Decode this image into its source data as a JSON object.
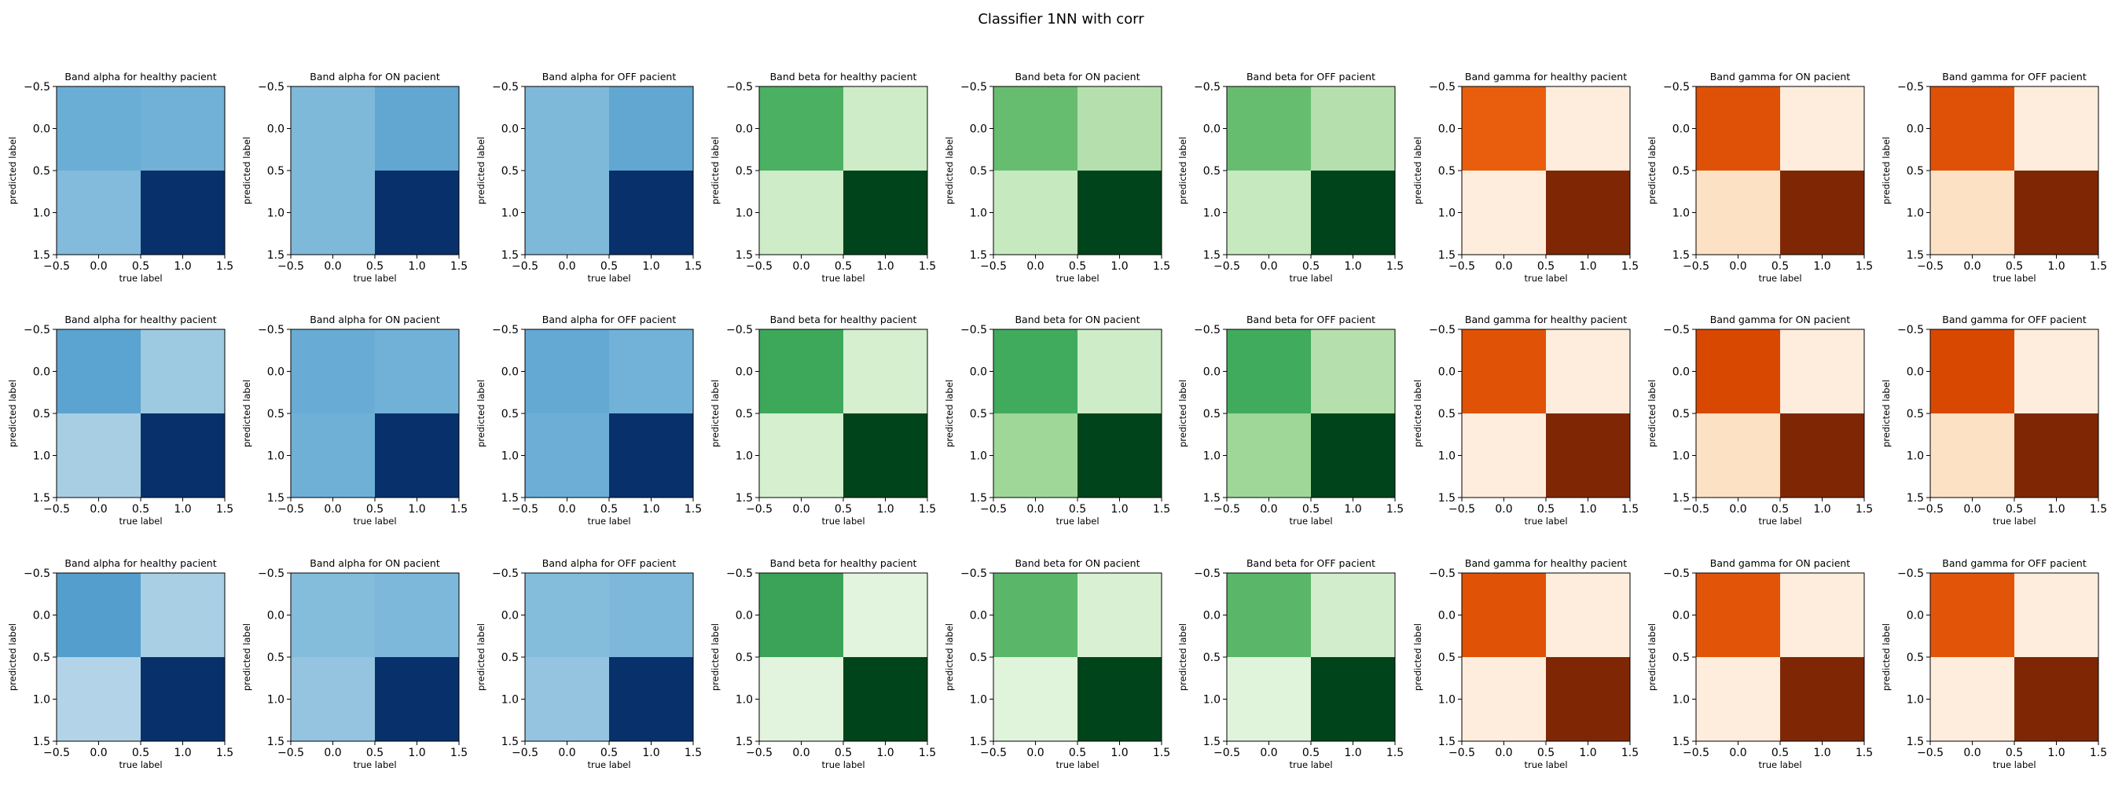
{
  "figure": {
    "title": "Classifier 1NN with corr"
  },
  "axes_common": {
    "xlabel": "true label",
    "ylabel": "predicted label",
    "xlim": [
      -0.5,
      1.5
    ],
    "ylim": [
      1.5,
      -0.5
    ],
    "xticks": [
      "−0.5",
      "0.0",
      "0.5",
      "1.0",
      "1.5"
    ],
    "yticks": [
      "−0.5",
      "0.0",
      "0.5",
      "1.0",
      "1.5"
    ]
  },
  "chart_data": [
    {
      "type": "heatmap",
      "title": "Band alpha for healthy pacient",
      "colormap": "Blues",
      "cells": [
        [
          "#6aaed6",
          "#71b1d7"
        ],
        [
          "#82bbdb",
          "#08306b"
        ]
      ]
    },
    {
      "type": "heatmap",
      "title": "Band alpha for ON pacient",
      "colormap": "Blues",
      "cells": [
        [
          "#7fb9da",
          "#61a7d2"
        ],
        [
          "#7fb9da",
          "#08306b"
        ]
      ]
    },
    {
      "type": "heatmap",
      "title": "Band alpha for OFF pacient",
      "colormap": "Blues",
      "cells": [
        [
          "#7fb9da",
          "#61a7d2"
        ],
        [
          "#7fb9da",
          "#08306b"
        ]
      ]
    },
    {
      "type": "heatmap",
      "title": "Band beta for healthy pacient",
      "colormap": "Greens",
      "cells": [
        [
          "#4bb062",
          "#cdecc7"
        ],
        [
          "#cdecc7",
          "#00441b"
        ]
      ]
    },
    {
      "type": "heatmap",
      "title": "Band beta for ON pacient",
      "colormap": "Greens",
      "cells": [
        [
          "#67bd6f",
          "#b5e0ad"
        ],
        [
          "#c7e9c0",
          "#00441b"
        ]
      ]
    },
    {
      "type": "heatmap",
      "title": "Band beta for OFF pacient",
      "colormap": "Greens",
      "cells": [
        [
          "#67bd6f",
          "#b5e0ad"
        ],
        [
          "#c7e9c0",
          "#00441b"
        ]
      ]
    },
    {
      "type": "heatmap",
      "title": "Band gamma for healthy pacient",
      "colormap": "Oranges",
      "cells": [
        [
          "#e95e0d",
          "#feeddc"
        ],
        [
          "#feeddc",
          "#7f2704"
        ]
      ]
    },
    {
      "type": "heatmap",
      "title": "Band gamma for ON pacient",
      "colormap": "Oranges",
      "cells": [
        [
          "#df5106",
          "#feeddc"
        ],
        [
          "#fde1c4",
          "#7f2704"
        ]
      ]
    },
    {
      "type": "heatmap",
      "title": "Band gamma for OFF pacient",
      "colormap": "Oranges",
      "cells": [
        [
          "#df5106",
          "#feeddc"
        ],
        [
          "#fde1c4",
          "#7f2704"
        ]
      ]
    },
    {
      "type": "heatmap",
      "title": "Band alpha for healthy pacient",
      "colormap": "Blues",
      "cells": [
        [
          "#5ba3d0",
          "#9dcae1"
        ],
        [
          "#a8cee4",
          "#08306b"
        ]
      ]
    },
    {
      "type": "heatmap",
      "title": "Band alpha for ON pacient",
      "colormap": "Blues",
      "cells": [
        [
          "#68acd5",
          "#71b1d7"
        ],
        [
          "#6fb0d7",
          "#08306b"
        ]
      ]
    },
    {
      "type": "heatmap",
      "title": "Band alpha for OFF pacient",
      "colormap": "Blues",
      "cells": [
        [
          "#64a9d3",
          "#72b2d8"
        ],
        [
          "#6caed6",
          "#08306b"
        ]
      ]
    },
    {
      "type": "heatmap",
      "title": "Band beta for healthy pacient",
      "colormap": "Greens",
      "cells": [
        [
          "#3ea85a",
          "#d5efcf"
        ],
        [
          "#d5efcf",
          "#00441b"
        ]
      ]
    },
    {
      "type": "heatmap",
      "title": "Band beta for ON pacient",
      "colormap": "Greens",
      "cells": [
        [
          "#41ab5d",
          "#cdecc7"
        ],
        [
          "#9ed798",
          "#00441b"
        ]
      ]
    },
    {
      "type": "heatmap",
      "title": "Band beta for OFF pacient",
      "colormap": "Greens",
      "cells": [
        [
          "#41ab5d",
          "#b5e0ad"
        ],
        [
          "#9ed798",
          "#00441b"
        ]
      ]
    },
    {
      "type": "heatmap",
      "title": "Band gamma for healthy pacient",
      "colormap": "Oranges",
      "cells": [
        [
          "#e05206",
          "#feeddc"
        ],
        [
          "#feeddc",
          "#7f2704"
        ]
      ]
    },
    {
      "type": "heatmap",
      "title": "Band gamma for ON pacient",
      "colormap": "Oranges",
      "cells": [
        [
          "#d94801",
          "#feeddc"
        ],
        [
          "#fde1c4",
          "#7f2704"
        ]
      ]
    },
    {
      "type": "heatmap",
      "title": "Band gamma for OFF pacient",
      "colormap": "Oranges",
      "cells": [
        [
          "#d94801",
          "#feeddc"
        ],
        [
          "#fde1c4",
          "#7f2704"
        ]
      ]
    },
    {
      "type": "heatmap",
      "title": "Band alpha for healthy pacient",
      "colormap": "Blues",
      "cells": [
        [
          "#539ecd",
          "#a9cfe5"
        ],
        [
          "#b3d3e8",
          "#08306b"
        ]
      ]
    },
    {
      "type": "heatmap",
      "title": "Band alpha for ON pacient",
      "colormap": "Blues",
      "cells": [
        [
          "#84bcdb",
          "#7db8da"
        ],
        [
          "#94c4df",
          "#08306b"
        ]
      ]
    },
    {
      "type": "heatmap",
      "title": "Band alpha for OFF pacient",
      "colormap": "Blues",
      "cells": [
        [
          "#84bcdb",
          "#7db8da"
        ],
        [
          "#94c4df",
          "#08306b"
        ]
      ]
    },
    {
      "type": "heatmap",
      "title": "Band beta for healthy pacient",
      "colormap": "Greens",
      "cells": [
        [
          "#3aa357",
          "#e3f4de"
        ],
        [
          "#e3f4de",
          "#00441b"
        ]
      ]
    },
    {
      "type": "heatmap",
      "title": "Band beta for ON pacient",
      "colormap": "Greens",
      "cells": [
        [
          "#5ab769",
          "#d9f0d3"
        ],
        [
          "#e0f3db",
          "#00441b"
        ]
      ]
    },
    {
      "type": "heatmap",
      "title": "Band beta for OFF pacient",
      "colormap": "Greens",
      "cells": [
        [
          "#5ab769",
          "#d2edcc"
        ],
        [
          "#e0f3db",
          "#00441b"
        ]
      ]
    },
    {
      "type": "heatmap",
      "title": "Band gamma for healthy pacient",
      "colormap": "Oranges",
      "cells": [
        [
          "#e05206",
          "#feeddc"
        ],
        [
          "#feeddc",
          "#7f2704"
        ]
      ]
    },
    {
      "type": "heatmap",
      "title": "Band gamma for ON pacient",
      "colormap": "Oranges",
      "cells": [
        [
          "#e25508",
          "#feeddc"
        ],
        [
          "#feeddc",
          "#7f2704"
        ]
      ]
    },
    {
      "type": "heatmap",
      "title": "Band gamma for OFF pacient",
      "colormap": "Oranges",
      "cells": [
        [
          "#e25508",
          "#feeddc"
        ],
        [
          "#feeddc",
          "#7f2704"
        ]
      ]
    }
  ]
}
